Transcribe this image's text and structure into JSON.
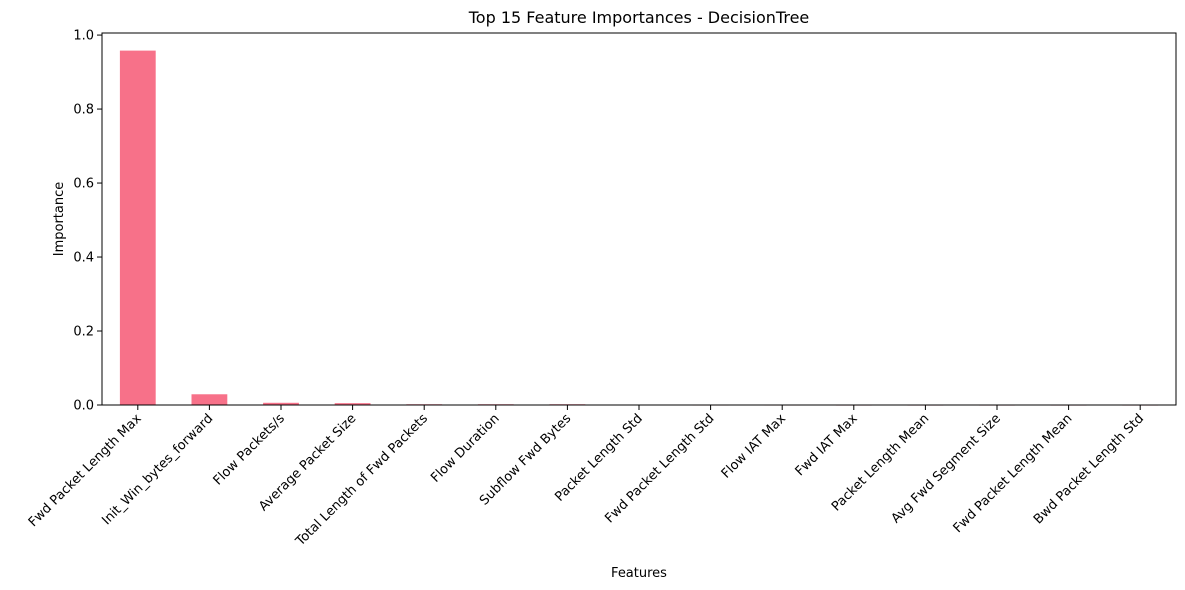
{
  "chart_data": {
    "type": "bar",
    "title": "Top 15 Feature Importances - DecisionTree",
    "xlabel": "Features",
    "ylabel": "Importance",
    "categories": [
      "Fwd Packet Length Max",
      "Init_Win_bytes_forward",
      "Flow Packets/s",
      "Average Packet Size",
      "Total Length of Fwd Packets",
      "Flow Duration",
      "Subflow Fwd Bytes",
      "Packet Length Std",
      "Fwd Packet Length Std",
      "Flow IAT Max",
      "Fwd IAT Max",
      "Packet Length Mean",
      "Avg Fwd Segment Size",
      "Fwd Packet Length Mean",
      "Bwd Packet Length Std"
    ],
    "values": [
      0.958,
      0.029,
      0.006,
      0.005,
      0.002,
      0.002,
      0.002,
      0.0003,
      0.0002,
      0.0002,
      0.0001,
      0.0001,
      0.0001,
      0.0001,
      0.0001
    ],
    "ylim": [
      0,
      1.0
    ],
    "yticks": [
      0.0,
      0.2,
      0.4,
      0.6,
      0.8,
      1.0
    ],
    "ytick_labels": [
      "0.0",
      "0.2",
      "0.4",
      "0.6",
      "0.8",
      "1.0"
    ],
    "grid": false,
    "bar_color": "#f77189"
  }
}
